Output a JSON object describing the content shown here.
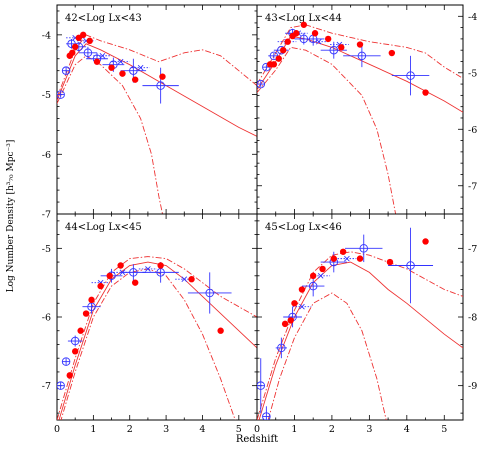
{
  "chart_data": {
    "type": "scatter",
    "xlabel": "Redshift",
    "ylabel": "Log Number Density [h³₇₀ Mpc⁻³]",
    "x_ticks": [
      "0",
      "1",
      "2",
      "3",
      "4",
      "5"
    ],
    "xlim": [
      0,
      5.5
    ],
    "colors": {
      "observed": "#ff0000",
      "binned": "#3333ff",
      "model": "#ee3333"
    },
    "panels": [
      {
        "title": "42<Log Lx<43",
        "ylim": [
          -7,
          -3.5
        ],
        "y_ticks": [
          "-4",
          "-5",
          "-6",
          "-7"
        ],
        "y_axis_side": "left",
        "red_points": {
          "x": [
            0.35,
            0.42,
            0.5,
            0.6,
            0.72,
            0.9,
            1.1,
            1.5,
            1.8,
            2.15,
            2.9
          ],
          "y": [
            -4.35,
            -4.3,
            -4.2,
            -4.05,
            -4.0,
            -4.1,
            -4.45,
            -4.55,
            -4.65,
            -4.75,
            -4.7
          ]
        },
        "blue_points": {
          "x": [
            0.1,
            0.25,
            0.4,
            0.6,
            0.85,
            1.1,
            1.55,
            2.1,
            2.85
          ],
          "y": [
            -5.0,
            -4.6,
            -4.15,
            -4.2,
            -4.3,
            -4.4,
            -4.5,
            -4.6,
            -4.85
          ],
          "xerr": [
            0.1,
            0.1,
            0.15,
            0.2,
            0.25,
            0.3,
            0.3,
            0.35,
            0.5
          ],
          "yerr": [
            0.05,
            0.06,
            0.08,
            0.08,
            0.1,
            0.1,
            0.12,
            0.2,
            0.3
          ]
        },
        "blue_upper": {
          "x": [
            0.5,
            0.8,
            1.25,
            1.75,
            2.3
          ],
          "y": [
            -4.05,
            -4.1,
            -4.35,
            -4.45,
            -4.55
          ]
        },
        "model_solid": {
          "x": [
            0.0,
            0.5,
            0.8,
            1.2,
            2.0,
            3.0,
            4.0,
            5.0,
            5.5
          ],
          "y": [
            -5.1,
            -4.35,
            -4.15,
            -4.25,
            -4.5,
            -4.85,
            -5.2,
            -5.55,
            -5.7
          ]
        },
        "model_upper": {
          "x": [
            0.0,
            0.5,
            0.8,
            1.2,
            2.0,
            2.8,
            3.5,
            4.0,
            4.5,
            5.0,
            5.5
          ],
          "y": [
            -5.05,
            -4.25,
            -4.0,
            -4.1,
            -4.25,
            -4.45,
            -4.3,
            -4.25,
            -4.35,
            -4.6,
            -4.85
          ]
        },
        "model_lower": {
          "x": [
            0.0,
            0.5,
            0.8,
            1.2,
            1.8,
            2.3,
            2.6,
            2.8,
            2.9
          ],
          "y": [
            -5.15,
            -4.5,
            -4.35,
            -4.5,
            -4.85,
            -5.4,
            -6.0,
            -6.7,
            -7.0
          ]
        }
      },
      {
        "title": "43<Log Lx<44",
        "ylim": [
          -7.5,
          -3.8
        ],
        "y_ticks": [
          "-4",
          "-5",
          "-6",
          "-7"
        ],
        "y_axis_side": "right",
        "red_points": {
          "x": [
            0.35,
            0.45,
            0.58,
            0.7,
            0.82,
            0.95,
            1.05,
            1.25,
            1.55,
            1.9,
            2.25,
            2.75,
            3.6,
            4.5
          ],
          "y": [
            -4.85,
            -4.85,
            -4.75,
            -4.6,
            -4.45,
            -4.35,
            -4.3,
            -4.15,
            -4.3,
            -4.4,
            -4.55,
            -4.5,
            -4.65,
            -5.35
          ]
        },
        "blue_points": {
          "x": [
            0.1,
            0.25,
            0.45,
            0.65,
            0.95,
            1.25,
            1.5,
            2.05,
            2.8,
            4.1
          ],
          "y": [
            -5.2,
            -4.9,
            -4.7,
            -4.6,
            -4.3,
            -4.4,
            -4.4,
            -4.6,
            -4.7,
            -5.05
          ],
          "xerr": [
            0.1,
            0.1,
            0.15,
            0.2,
            0.2,
            0.25,
            0.3,
            0.35,
            0.5,
            0.5
          ],
          "yerr": [
            0.05,
            0.05,
            0.05,
            0.05,
            0.08,
            0.1,
            0.12,
            0.15,
            0.2,
            0.35
          ]
        },
        "blue_upper": {
          "x": [
            0.8,
            1.1,
            1.65,
            2.2
          ],
          "y": [
            -4.45,
            -4.3,
            -4.45,
            -4.5
          ]
        },
        "model_solid": {
          "x": [
            0.0,
            0.5,
            0.9,
            1.3,
            2.0,
            3.0,
            4.0,
            5.0,
            5.5
          ],
          "y": [
            -5.3,
            -4.8,
            -4.35,
            -4.4,
            -4.55,
            -4.85,
            -5.15,
            -5.5,
            -5.7
          ]
        },
        "model_upper": {
          "x": [
            0.0,
            0.5,
            0.9,
            1.3,
            2.0,
            3.0,
            3.5,
            4.0,
            4.5,
            5.0,
            5.5
          ],
          "y": [
            -5.2,
            -4.65,
            -4.2,
            -4.15,
            -4.3,
            -4.45,
            -4.5,
            -4.55,
            -4.65,
            -4.9,
            -5.1
          ]
        },
        "model_lower": {
          "x": [
            0.0,
            0.5,
            0.9,
            1.3,
            2.0,
            2.8,
            3.2,
            3.5,
            3.7
          ],
          "y": [
            -5.35,
            -4.95,
            -4.55,
            -4.6,
            -4.85,
            -5.4,
            -6.0,
            -6.8,
            -7.5
          ]
        }
      },
      {
        "title": "44<Log Lx<45",
        "ylim": [
          -7.5,
          -4.5
        ],
        "y_ticks": [
          "-5",
          "-6",
          "-7"
        ],
        "y_axis_side": "left",
        "red_points": {
          "x": [
            0.35,
            0.5,
            0.65,
            0.8,
            0.95,
            1.2,
            1.45,
            1.75,
            2.15,
            2.85,
            3.7,
            4.5
          ],
          "y": [
            -6.85,
            -6.5,
            -6.2,
            -5.95,
            -5.75,
            -5.55,
            -5.4,
            -5.25,
            -5.5,
            -5.25,
            -5.45,
            -6.2
          ]
        },
        "blue_points": {
          "x": [
            0.1,
            0.25,
            0.5,
            0.95,
            1.5,
            2.1,
            2.85,
            4.2
          ],
          "y": [
            -7.0,
            -6.65,
            -6.35,
            -5.85,
            -5.4,
            -5.35,
            -5.35,
            -5.65
          ],
          "xerr": [
            0.1,
            0.1,
            0.2,
            0.25,
            0.3,
            0.35,
            0.5,
            0.6
          ],
          "yerr": [
            0.05,
            0.05,
            0.08,
            0.1,
            0.1,
            0.12,
            0.15,
            0.3
          ]
        },
        "blue_upper": {
          "x": [
            1.2,
            1.8,
            2.5,
            3.5
          ],
          "y": [
            -5.5,
            -5.35,
            -5.3,
            -5.45
          ]
        },
        "model_solid": {
          "x": [
            0.0,
            0.5,
            1.0,
            1.5,
            2.0,
            2.5,
            3.0,
            3.5,
            4.0,
            5.0,
            5.5
          ],
          "y": [
            -7.6,
            -6.7,
            -5.9,
            -5.45,
            -5.25,
            -5.2,
            -5.25,
            -5.45,
            -5.7,
            -6.2,
            -6.45
          ]
        },
        "model_upper": {
          "x": [
            0.0,
            0.5,
            1.0,
            1.5,
            2.0,
            2.5,
            3.0,
            3.5,
            4.0,
            4.5,
            5.0,
            5.5
          ],
          "y": [
            -7.5,
            -6.6,
            -5.8,
            -5.35,
            -5.15,
            -5.12,
            -5.15,
            -5.3,
            -5.5,
            -5.7,
            -5.85,
            -6.0
          ]
        },
        "model_lower": {
          "x": [
            0.0,
            0.5,
            1.0,
            1.5,
            2.0,
            2.5,
            3.0,
            3.5,
            4.0,
            4.5,
            4.9
          ],
          "y": [
            -7.7,
            -6.8,
            -6.0,
            -5.55,
            -5.35,
            -5.3,
            -5.4,
            -5.75,
            -6.25,
            -6.9,
            -7.5
          ]
        }
      },
      {
        "title": "45<Log Lx<46",
        "ylim": [
          -9.5,
          -6.5
        ],
        "y_ticks": [
          "-7",
          "-8",
          "-9"
        ],
        "y_axis_side": "right",
        "red_points": {
          "x": [
            0.75,
            0.9,
            1.0,
            1.2,
            1.5,
            1.75,
            2.05,
            2.3,
            2.75,
            3.55,
            4.5
          ],
          "y": [
            -8.1,
            -8.05,
            -7.8,
            -7.6,
            -7.4,
            -7.3,
            -7.15,
            -7.05,
            -7.15,
            -7.2,
            -6.9
          ]
        },
        "blue_points": {
          "x": [
            0.1,
            0.25,
            0.65,
            0.95,
            1.5,
            2.05,
            2.85,
            4.1
          ],
          "y": [
            -9.0,
            -9.45,
            -8.45,
            -8.0,
            -7.55,
            -7.2,
            -7.0,
            -7.25
          ],
          "xerr": [
            0.1,
            0.1,
            0.15,
            0.25,
            0.3,
            0.35,
            0.5,
            0.6
          ],
          "yerr": [
            0.4,
            0.15,
            0.15,
            0.15,
            0.15,
            0.15,
            0.2,
            0.55
          ]
        },
        "blue_upper": {
          "x": [
            1.2,
            1.7,
            2.4
          ],
          "y": [
            -7.85,
            -7.4,
            -7.15
          ]
        },
        "model_solid": {
          "x": [
            0.0,
            0.5,
            1.0,
            1.5,
            2.0,
            2.5,
            3.0,
            3.5,
            4.0,
            5.0,
            5.5
          ],
          "y": [
            -9.6,
            -8.7,
            -8.0,
            -7.5,
            -7.25,
            -7.2,
            -7.35,
            -7.6,
            -7.8,
            -8.25,
            -8.45
          ]
        },
        "model_upper": {
          "x": [
            0.0,
            0.5,
            1.0,
            1.5,
            2.0,
            2.5,
            3.0,
            3.5,
            4.0,
            4.5,
            5.0,
            5.5
          ],
          "y": [
            -9.5,
            -8.6,
            -7.9,
            -7.35,
            -7.1,
            -7.05,
            -7.1,
            -7.2,
            -7.3,
            -7.45,
            -7.6,
            -7.7
          ]
        },
        "model_lower": {
          "x": [
            0.3,
            0.6,
            1.0,
            1.5,
            2.0,
            2.4,
            2.8,
            3.2,
            3.45
          ],
          "y": [
            -9.5,
            -8.9,
            -8.3,
            -7.8,
            -7.65,
            -7.8,
            -8.2,
            -8.9,
            -9.5
          ]
        }
      }
    ]
  }
}
